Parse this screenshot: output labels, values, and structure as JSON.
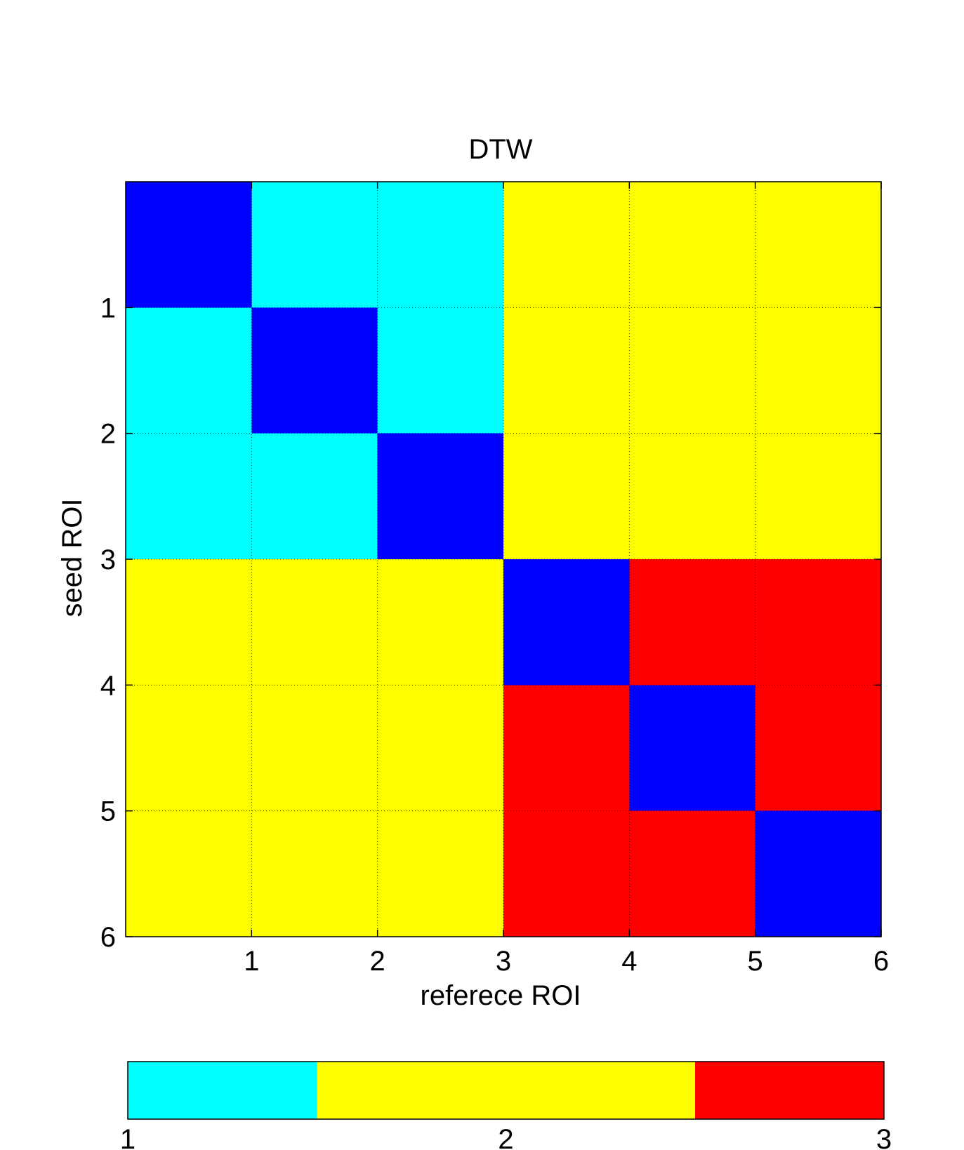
{
  "chart_data": {
    "type": "heatmap",
    "title": "DTW",
    "xlabel": "referece ROI",
    "ylabel": "seed ROI",
    "xlim": [
      0,
      6
    ],
    "ylim": [
      0,
      6
    ],
    "x_ticks": [
      1,
      2,
      3,
      4,
      5,
      6
    ],
    "y_ticks": [
      1,
      2,
      3,
      4,
      5,
      6
    ],
    "x_tick_labels": [
      "1",
      "2",
      "3",
      "4",
      "5",
      "6"
    ],
    "y_tick_labels": [
      "1",
      "2",
      "3",
      "4",
      "5",
      "6"
    ],
    "grid": true,
    "grid_style": "dotted",
    "matrix": [
      [
        0,
        1,
        1,
        2,
        2,
        2
      ],
      [
        1,
        0,
        1,
        2,
        2,
        2
      ],
      [
        1,
        1,
        0,
        2,
        2,
        2
      ],
      [
        2,
        2,
        2,
        0,
        3,
        3
      ],
      [
        2,
        2,
        2,
        3,
        0,
        3
      ],
      [
        2,
        2,
        2,
        3,
        3,
        0
      ]
    ],
    "value_colors": {
      "0": "#0000ff",
      "1": "#00ffff",
      "2": "#ffff00",
      "3": "#ff0000"
    },
    "colorbar": {
      "placement": "bottom",
      "range": [
        1,
        3
      ],
      "segments": [
        {
          "value": 1,
          "from": 1.0,
          "to": 1.5,
          "color": "#00ffff"
        },
        {
          "value": 2,
          "from": 1.5,
          "to": 2.5,
          "color": "#ffff00"
        },
        {
          "value": 3,
          "from": 2.5,
          "to": 3.0,
          "color": "#ff0000"
        }
      ],
      "ticks": [
        1,
        2,
        3
      ],
      "tick_labels": [
        "1",
        "2",
        "3"
      ]
    }
  }
}
